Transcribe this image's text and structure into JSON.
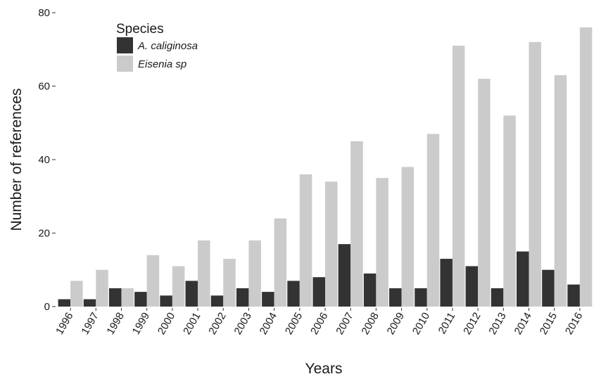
{
  "chart_data": {
    "type": "bar",
    "title": "",
    "xlabel": "Years",
    "ylabel": "Number of references",
    "ylim": [
      0,
      80
    ],
    "yticks": [
      0,
      20,
      40,
      60,
      80
    ],
    "grid": false,
    "legend": {
      "title": "Species",
      "placement": "top-left"
    },
    "categories": [
      "1996",
      "1997",
      "1998",
      "1999",
      "2000",
      "2001",
      "2002",
      "2003",
      "2004",
      "2005",
      "2006",
      "2007",
      "2008",
      "2009",
      "2010",
      "2011",
      "2012",
      "2013",
      "2014",
      "2015",
      "2016"
    ],
    "series": [
      {
        "name": "A. caliginosa",
        "color": "#333333",
        "values": [
          2,
          2,
          5,
          4,
          3,
          7,
          3,
          5,
          4,
          7,
          8,
          17,
          9,
          5,
          5,
          13,
          11,
          5,
          15,
          10,
          6
        ]
      },
      {
        "name": "Eisenia sp",
        "color": "#cbcbcb",
        "values": [
          7,
          10,
          5,
          14,
          11,
          18,
          13,
          18,
          24,
          36,
          34,
          45,
          35,
          38,
          47,
          71,
          62,
          52,
          72,
          63,
          76
        ]
      }
    ]
  }
}
